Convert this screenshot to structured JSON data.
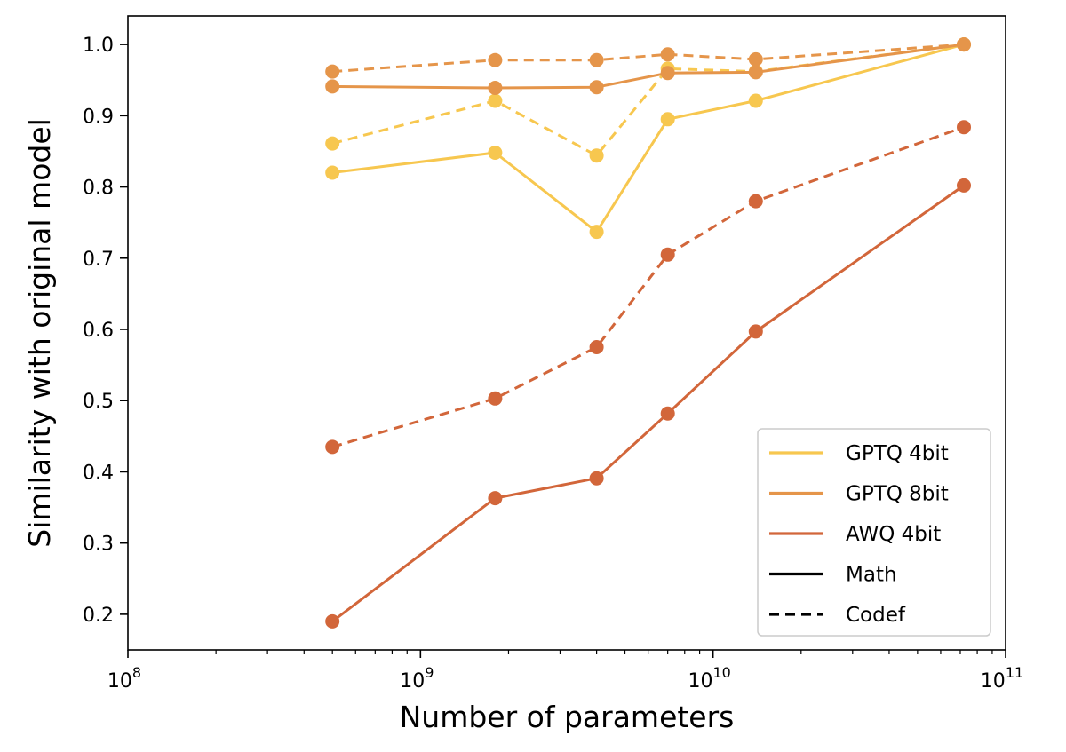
{
  "chart_data": {
    "type": "line",
    "title": "",
    "xlabel": "Number of parameters",
    "ylabel": "Similarity with original model",
    "xscale": "log",
    "xlim": [
      100000000,
      100000000000
    ],
    "ylim": [
      0.15,
      1.04
    ],
    "x_ticks": [
      {
        "value": 100000000,
        "base": "10",
        "exp": "8"
      },
      {
        "value": 1000000000,
        "base": "10",
        "exp": "9"
      },
      {
        "value": 10000000000,
        "base": "10",
        "exp": "10"
      },
      {
        "value": 100000000000,
        "base": "10",
        "exp": "11"
      }
    ],
    "y_ticks": [
      {
        "value": 0.2,
        "label": "0.2"
      },
      {
        "value": 0.3,
        "label": "0.3"
      },
      {
        "value": 0.4,
        "label": "0.4"
      },
      {
        "value": 0.5,
        "label": "0.5"
      },
      {
        "value": 0.6,
        "label": "0.6"
      },
      {
        "value": 0.7,
        "label": "0.7"
      },
      {
        "value": 0.8,
        "label": "0.8"
      },
      {
        "value": 0.9,
        "label": "0.9"
      },
      {
        "value": 1.0,
        "label": "1.0"
      }
    ],
    "x": [
      500000000,
      1800000000,
      4000000000,
      7000000000,
      14000000000,
      72000000000
    ],
    "series": [
      {
        "name": "GPTQ 4bit",
        "task": "Math",
        "color": "#F7C74F",
        "style": "solid",
        "values": [
          0.82,
          0.848,
          0.737,
          0.895,
          0.921,
          1.0
        ]
      },
      {
        "name": "GPTQ 4bit",
        "task": "Codef",
        "color": "#F7C74F",
        "style": "dashed",
        "values": [
          0.861,
          0.921,
          0.844,
          0.966,
          0.962,
          1.0
        ]
      },
      {
        "name": "GPTQ 8bit",
        "task": "Math",
        "color": "#E5954A",
        "style": "solid",
        "values": [
          0.941,
          0.939,
          0.94,
          0.96,
          0.961,
          1.0
        ]
      },
      {
        "name": "GPTQ 8bit",
        "task": "Codef",
        "color": "#E5954A",
        "style": "dashed",
        "values": [
          0.962,
          0.978,
          0.978,
          0.986,
          0.979,
          1.0
        ]
      },
      {
        "name": "AWQ 4bit",
        "task": "Math",
        "color": "#D2663A",
        "style": "solid",
        "values": [
          0.19,
          0.363,
          0.391,
          0.482,
          0.597,
          0.802
        ]
      },
      {
        "name": "AWQ 4bit",
        "task": "Codef",
        "color": "#D2663A",
        "style": "dashed",
        "values": [
          0.435,
          0.503,
          0.575,
          0.705,
          0.78,
          0.884
        ]
      }
    ],
    "legend": {
      "position": "bottom-right",
      "entries": [
        {
          "label": "GPTQ 4bit",
          "color": "#F7C74F",
          "style": "solid"
        },
        {
          "label": "GPTQ 8bit",
          "color": "#E5954A",
          "style": "solid"
        },
        {
          "label": "AWQ 4bit",
          "color": "#D2663A",
          "style": "solid"
        },
        {
          "label": "Math",
          "color": "#000000",
          "style": "solid"
        },
        {
          "label": "Codef",
          "color": "#000000",
          "style": "dashed"
        }
      ]
    }
  }
}
